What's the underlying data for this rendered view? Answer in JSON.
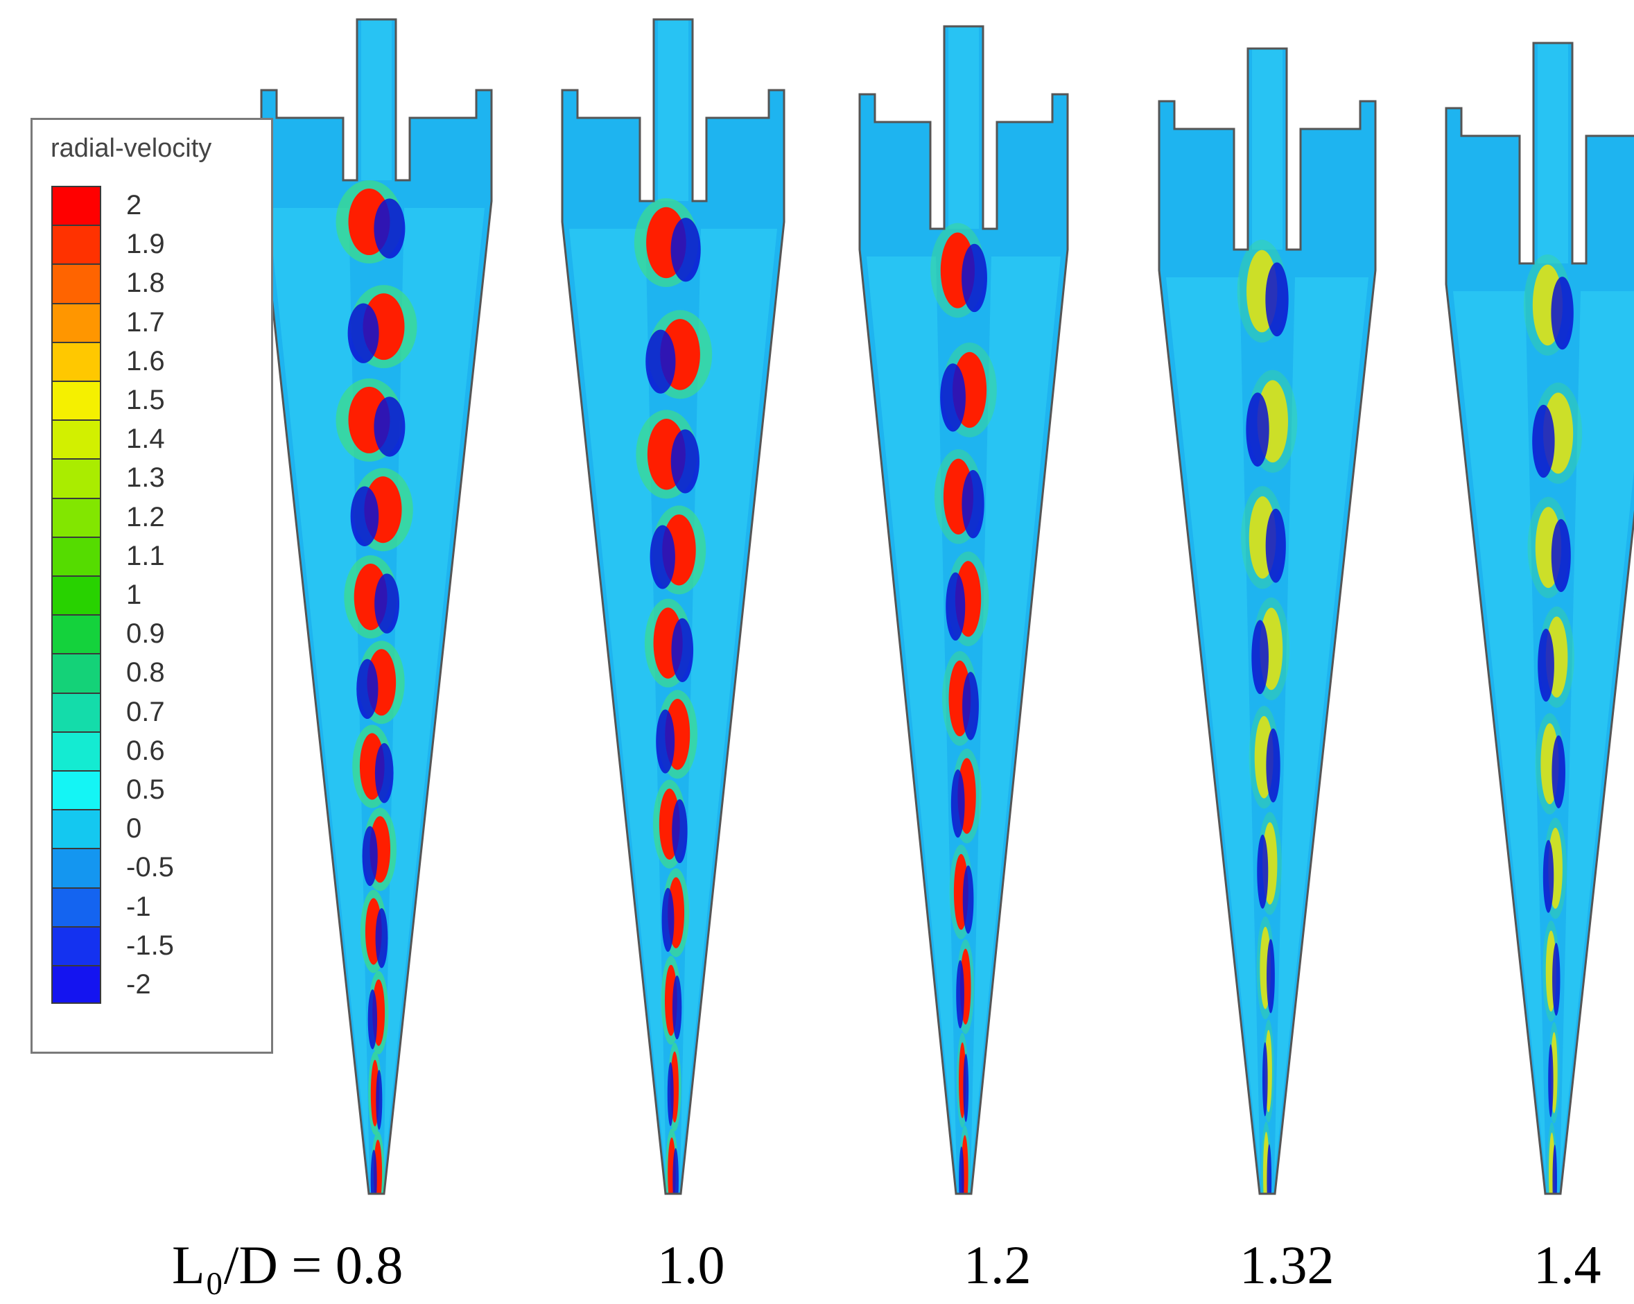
{
  "legend": {
    "title": "radial-velocity",
    "levels": [
      {
        "label": "2",
        "color": "#ff0000"
      },
      {
        "label": "1.9",
        "color": "#ff3200"
      },
      {
        "label": "1.8",
        "color": "#ff6400"
      },
      {
        "label": "1.7",
        "color": "#ff9600"
      },
      {
        "label": "1.6",
        "color": "#ffc800"
      },
      {
        "label": "1.5",
        "color": "#f5f000"
      },
      {
        "label": "1.4",
        "color": "#d2f000"
      },
      {
        "label": "1.3",
        "color": "#aaec00"
      },
      {
        "label": "1.2",
        "color": "#82e600"
      },
      {
        "label": "1.1",
        "color": "#55dc00"
      },
      {
        "label": "1",
        "color": "#28d200"
      },
      {
        "label": "0.9",
        "color": "#14d23c"
      },
      {
        "label": "0.8",
        "color": "#14d278"
      },
      {
        "label": "0.7",
        "color": "#14dcaa"
      },
      {
        "label": "0.6",
        "color": "#14ebd2"
      },
      {
        "label": "0.5",
        "color": "#14f5f5"
      },
      {
        "label": "0",
        "color": "#14c8f0"
      },
      {
        "label": "-0.5",
        "color": "#1496f0"
      },
      {
        "label": "-1",
        "color": "#1464f0"
      },
      {
        "label": "-1.5",
        "color": "#1432f0"
      },
      {
        "label": "-2",
        "color": "#1414f0"
      }
    ]
  },
  "colors": {
    "background_field": "#1eb4f0",
    "light_field": "#32d2f5",
    "outline": "#555555",
    "positive_core": "#ff1e00",
    "negative_core": "#0a14d2"
  },
  "cases": [
    {
      "label": "L₀/D = 0.8",
      "cells": 12,
      "intensity": 1.0
    },
    {
      "label": "1.0",
      "cells": 11,
      "intensity": 0.9
    },
    {
      "label": "1.2",
      "cells": 10,
      "intensity": 0.55
    },
    {
      "label": "1.32",
      "cells": 9,
      "intensity": 0.35
    },
    {
      "label": "1.4",
      "cells": 9,
      "intensity": 0.3
    }
  ]
}
